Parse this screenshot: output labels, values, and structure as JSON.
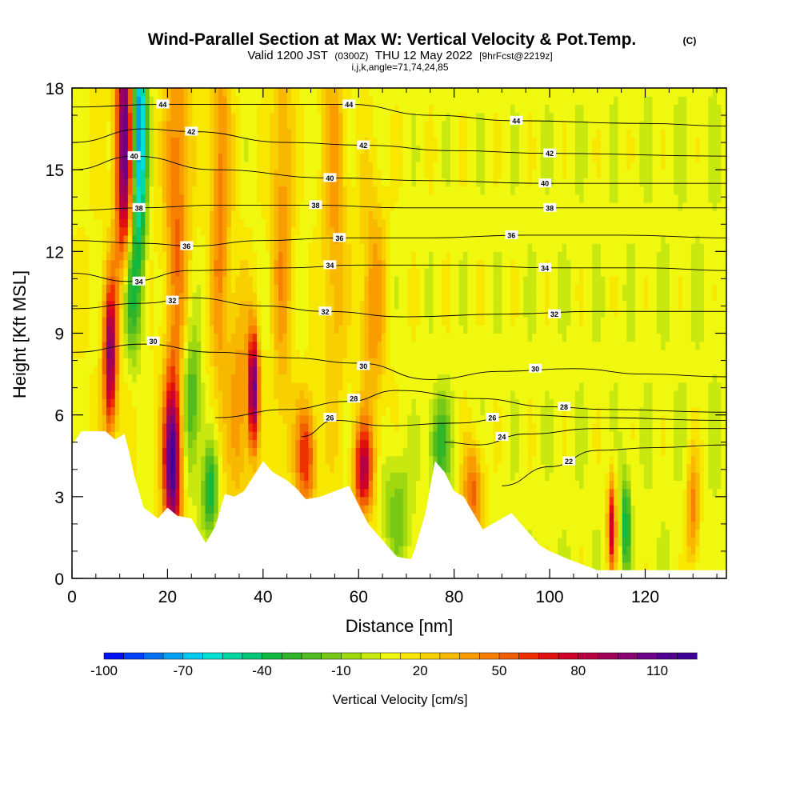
{
  "chart_data": {
    "type": "heatmap",
    "title": "Wind-Parallel Section at Max W: Vertical Velocity & Pot.Temp.",
    "title_mark": "(C)",
    "subtitle": {
      "valid": "Valid 1200 JST",
      "utc": "(0300Z)",
      "date": "THU 12 May 2022",
      "fcst": "[9hrFcst@2219z]"
    },
    "subtitle2": "i,j,k,angle=71,74,24,85",
    "xlabel": "Distance [nm]",
    "ylabel": "Height [Kft MSL]",
    "xlim": [
      0,
      137
    ],
    "ylim": [
      0,
      18
    ],
    "x_ticks": [
      "0",
      "20",
      "40",
      "60",
      "80",
      "100",
      "120"
    ],
    "y_ticks": [
      "0",
      "3",
      "6",
      "9",
      "12",
      "15",
      "18"
    ],
    "colorbar": {
      "label": "Vertical Velocity [cm/s]",
      "range": [
        -100,
        125
      ],
      "step": 7.5,
      "tick_labels": [
        "-100",
        "-70",
        "-40",
        "-10",
        "20",
        "50",
        "80",
        "110"
      ],
      "colors": [
        "#0010f0",
        "#0040f8",
        "#0070f0",
        "#00a0f0",
        "#00c8f0",
        "#00e0d0",
        "#00d8a0",
        "#00c878",
        "#10b840",
        "#30b428",
        "#50bc20",
        "#78c818",
        "#a0d810",
        "#c8e810",
        "#f0f810",
        "#f8e800",
        "#f8d000",
        "#f8b800",
        "#f89c00",
        "#f88000",
        "#f06000",
        "#f03000",
        "#e01010",
        "#d00028",
        "#b80040",
        "#a00058",
        "#880070",
        "#6c0088",
        "#500090",
        "#400098"
      ]
    },
    "theta_labels": [
      {
        "x": 19,
        "z": 17.4,
        "v": "44"
      },
      {
        "x": 58,
        "z": 17.4,
        "v": "44"
      },
      {
        "x": 93,
        "z": 16.8,
        "v": "44"
      },
      {
        "x": 25,
        "z": 16.4,
        "v": "42"
      },
      {
        "x": 61,
        "z": 15.9,
        "v": "42"
      },
      {
        "x": 100,
        "z": 15.6,
        "v": "42"
      },
      {
        "x": 13,
        "z": 15.5,
        "v": "40"
      },
      {
        "x": 54,
        "z": 14.7,
        "v": "40"
      },
      {
        "x": 99,
        "z": 14.5,
        "v": "40"
      },
      {
        "x": 14,
        "z": 13.6,
        "v": "38"
      },
      {
        "x": 51,
        "z": 13.7,
        "v": "38"
      },
      {
        "x": 100,
        "z": 13.6,
        "v": "38"
      },
      {
        "x": 24,
        "z": 12.2,
        "v": "36"
      },
      {
        "x": 56,
        "z": 12.5,
        "v": "36"
      },
      {
        "x": 92,
        "z": 12.6,
        "v": "36"
      },
      {
        "x": 14,
        "z": 10.9,
        "v": "34"
      },
      {
        "x": 54,
        "z": 11.5,
        "v": "34"
      },
      {
        "x": 99,
        "z": 11.4,
        "v": "34"
      },
      {
        "x": 21,
        "z": 10.2,
        "v": "32"
      },
      {
        "x": 53,
        "z": 9.8,
        "v": "32"
      },
      {
        "x": 101,
        "z": 9.7,
        "v": "32"
      },
      {
        "x": 17,
        "z": 8.7,
        "v": "30"
      },
      {
        "x": 61,
        "z": 7.8,
        "v": "30"
      },
      {
        "x": 97,
        "z": 7.7,
        "v": "30"
      },
      {
        "x": 59,
        "z": 6.6,
        "v": "28"
      },
      {
        "x": 103,
        "z": 6.3,
        "v": "28"
      },
      {
        "x": 54,
        "z": 5.9,
        "v": "26"
      },
      {
        "x": 88,
        "z": 5.9,
        "v": "26"
      },
      {
        "x": 90,
        "z": 5.2,
        "v": "24"
      },
      {
        "x": 104,
        "z": 4.3,
        "v": "22"
      }
    ],
    "theta_levels": [
      {
        "v": 22,
        "pts": [
          [
            90,
            3.4
          ],
          [
            100,
            4.1
          ],
          [
            110,
            4.7
          ],
          [
            122,
            4.8
          ],
          [
            137,
            4.9
          ]
        ]
      },
      {
        "v": 24,
        "pts": [
          [
            78,
            5.0
          ],
          [
            85,
            4.9
          ],
          [
            95,
            5.3
          ],
          [
            110,
            5.5
          ],
          [
            124,
            5.5
          ],
          [
            137,
            5.5
          ]
        ]
      },
      {
        "v": 26,
        "pts": [
          [
            48,
            5.2
          ],
          [
            55,
            5.8
          ],
          [
            66,
            5.6
          ],
          [
            80,
            5.7
          ],
          [
            95,
            6.0
          ],
          [
            110,
            5.9
          ],
          [
            137,
            5.8
          ]
        ]
      },
      {
        "v": 28,
        "pts": [
          [
            30,
            5.9
          ],
          [
            45,
            6.2
          ],
          [
            58,
            6.5
          ],
          [
            68,
            6.9
          ],
          [
            85,
            6.6
          ],
          [
            100,
            6.3
          ],
          [
            112,
            6.2
          ],
          [
            137,
            6.1
          ]
        ]
      },
      {
        "v": 30,
        "pts": [
          [
            0,
            8.3
          ],
          [
            15,
            8.6
          ],
          [
            30,
            8.3
          ],
          [
            45,
            8.1
          ],
          [
            60,
            7.9
          ],
          [
            75,
            7.3
          ],
          [
            90,
            7.6
          ],
          [
            105,
            7.7
          ],
          [
            120,
            7.5
          ],
          [
            137,
            7.4
          ]
        ]
      },
      {
        "v": 32,
        "pts": [
          [
            0,
            9.9
          ],
          [
            15,
            10.1
          ],
          [
            25,
            10.3
          ],
          [
            40,
            10.0
          ],
          [
            53,
            9.8
          ],
          [
            70,
            9.6
          ],
          [
            90,
            9.7
          ],
          [
            110,
            9.8
          ],
          [
            137,
            9.8
          ]
        ]
      },
      {
        "v": 34,
        "pts": [
          [
            0,
            11.2
          ],
          [
            12,
            10.9
          ],
          [
            25,
            11.3
          ],
          [
            45,
            11.4
          ],
          [
            60,
            11.5
          ],
          [
            80,
            11.5
          ],
          [
            100,
            11.4
          ],
          [
            120,
            11.4
          ],
          [
            137,
            11.3
          ]
        ]
      },
      {
        "v": 36,
        "pts": [
          [
            0,
            12.4
          ],
          [
            15,
            12.3
          ],
          [
            25,
            12.2
          ],
          [
            40,
            12.4
          ],
          [
            56,
            12.5
          ],
          [
            75,
            12.5
          ],
          [
            95,
            12.6
          ],
          [
            115,
            12.6
          ],
          [
            137,
            12.5
          ]
        ]
      },
      {
        "v": 38,
        "pts": [
          [
            0,
            13.5
          ],
          [
            14,
            13.6
          ],
          [
            30,
            13.7
          ],
          [
            51,
            13.7
          ],
          [
            70,
            13.6
          ],
          [
            100,
            13.6
          ],
          [
            120,
            13.6
          ],
          [
            137,
            13.6
          ]
        ]
      },
      {
        "v": 40,
        "pts": [
          [
            0,
            15.0
          ],
          [
            13,
            15.5
          ],
          [
            30,
            15.0
          ],
          [
            54,
            14.7
          ],
          [
            75,
            14.6
          ],
          [
            99,
            14.5
          ],
          [
            120,
            14.5
          ],
          [
            137,
            14.5
          ]
        ]
      },
      {
        "v": 42,
        "pts": [
          [
            0,
            16.0
          ],
          [
            15,
            16.5
          ],
          [
            25,
            16.4
          ],
          [
            45,
            16.0
          ],
          [
            61,
            15.9
          ],
          [
            80,
            15.7
          ],
          [
            100,
            15.6
          ],
          [
            137,
            15.5
          ]
        ]
      },
      {
        "v": 44,
        "pts": [
          [
            0,
            17.3
          ],
          [
            19,
            17.4
          ],
          [
            40,
            17.4
          ],
          [
            58,
            17.4
          ],
          [
            75,
            17.0
          ],
          [
            93,
            16.8
          ],
          [
            120,
            16.7
          ],
          [
            137,
            16.6
          ]
        ]
      }
    ],
    "terrain": [
      [
        0,
        4.9
      ],
      [
        2,
        5.4
      ],
      [
        7,
        5.4
      ],
      [
        9,
        5.1
      ],
      [
        11,
        5.3
      ],
      [
        12,
        4.6
      ],
      [
        13,
        3.8
      ],
      [
        14,
        3.2
      ],
      [
        15,
        2.6
      ],
      [
        18,
        2.2
      ],
      [
        20,
        2.6
      ],
      [
        22,
        2.3
      ],
      [
        25,
        2.2
      ],
      [
        28,
        1.3
      ],
      [
        30,
        1.9
      ],
      [
        32,
        3.1
      ],
      [
        34,
        3.0
      ],
      [
        36,
        3.2
      ],
      [
        40,
        4.3
      ],
      [
        42,
        3.9
      ],
      [
        45,
        3.6
      ],
      [
        47,
        3.3
      ],
      [
        49,
        2.9
      ],
      [
        52,
        3.0
      ],
      [
        55,
        3.2
      ],
      [
        58,
        3.4
      ],
      [
        60,
        2.7
      ],
      [
        62,
        2.0
      ],
      [
        64,
        1.6
      ],
      [
        66,
        1.2
      ],
      [
        68,
        0.8
      ],
      [
        71,
        0.7
      ],
      [
        72,
        1.2
      ],
      [
        74,
        2.4
      ],
      [
        76,
        4.3
      ],
      [
        78,
        3.9
      ],
      [
        80,
        3.2
      ],
      [
        82,
        3.0
      ],
      [
        84,
        2.4
      ],
      [
        86,
        1.8
      ],
      [
        88,
        2.0
      ],
      [
        90,
        2.2
      ],
      [
        92,
        2.4
      ],
      [
        95,
        1.8
      ],
      [
        98,
        1.2
      ],
      [
        100,
        1.0
      ],
      [
        104,
        0.7
      ],
      [
        110,
        0.3
      ],
      [
        118,
        0.3
      ],
      [
        125,
        0.3
      ],
      [
        130,
        0.3
      ],
      [
        137,
        0.3
      ]
    ],
    "w_features": [
      {
        "x": 8,
        "z": 8.2,
        "w": 88,
        "sx": 1.0,
        "sz": 2.0
      },
      {
        "x": 11,
        "z": 16.0,
        "w": 100,
        "sx": 1.3,
        "sz": 4.0
      },
      {
        "x": 14,
        "z": 16.5,
        "w": -95,
        "sx": 1.1,
        "sz": 3.5
      },
      {
        "x": 12,
        "z": 10.5,
        "w": -55,
        "sx": 1.3,
        "sz": 1.8
      },
      {
        "x": 21,
        "z": 4.3,
        "w": 105,
        "sx": 1.3,
        "sz": 2.2
      },
      {
        "x": 22,
        "z": 14.0,
        "w": 40,
        "sx": 1.8,
        "sz": 5.0
      },
      {
        "x": 25,
        "z": 6.5,
        "w": -40,
        "sx": 1.4,
        "sz": 2.0
      },
      {
        "x": 29,
        "z": 3.2,
        "w": -50,
        "sx": 1.2,
        "sz": 1.2
      },
      {
        "x": 31,
        "z": 14.0,
        "w": 35,
        "sx": 1.5,
        "sz": 6.0
      },
      {
        "x": 35,
        "z": 6.5,
        "w": 30,
        "sx": 1.5,
        "sz": 3.0
      },
      {
        "x": 38,
        "z": 7.0,
        "w": 95,
        "sx": 0.8,
        "sz": 1.6
      },
      {
        "x": 44,
        "z": 13.0,
        "w": 30,
        "sx": 1.6,
        "sz": 6.0
      },
      {
        "x": 49,
        "z": 4.5,
        "w": 55,
        "sx": 1.5,
        "sz": 1.5
      },
      {
        "x": 55,
        "z": 14.0,
        "w": 28,
        "sx": 1.8,
        "sz": 6.0
      },
      {
        "x": 61,
        "z": 4.0,
        "w": 70,
        "sx": 1.4,
        "sz": 1.2
      },
      {
        "x": 63,
        "z": 10.0,
        "w": 30,
        "sx": 2.0,
        "sz": 3.5
      },
      {
        "x": 68,
        "z": 2.5,
        "w": -25,
        "sx": 2.0,
        "sz": 1.5
      },
      {
        "x": 77,
        "z": 5.0,
        "w": -40,
        "sx": 1.5,
        "sz": 1.2
      },
      {
        "x": 84,
        "z": 3.2,
        "w": 45,
        "sx": 1.5,
        "sz": 1.2
      },
      {
        "x": 113,
        "z": 2.0,
        "w": 70,
        "sx": 0.6,
        "sz": 1.3
      },
      {
        "x": 116,
        "z": 2.0,
        "w": -50,
        "sx": 0.6,
        "sz": 1.3
      },
      {
        "x": 130,
        "z": 2.5,
        "w": 40,
        "sx": 1.0,
        "sz": 1.5
      }
    ]
  }
}
